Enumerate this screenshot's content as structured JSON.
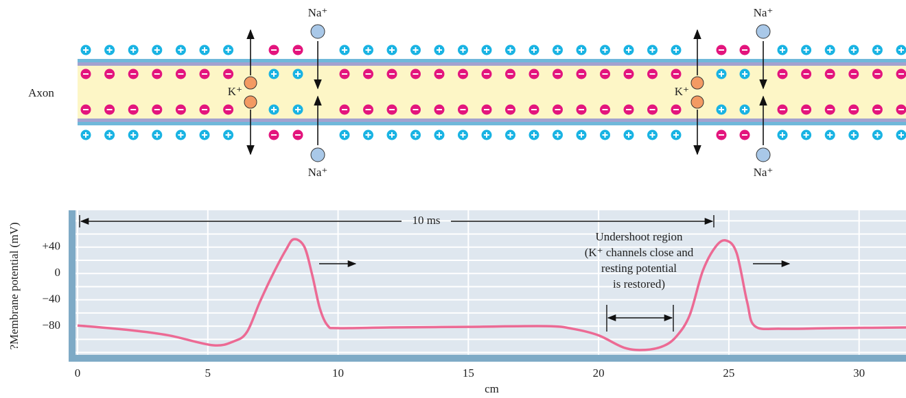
{
  "diagram": {
    "axon_label": "Axon",
    "na_labels": [
      "Na⁺",
      "Na⁺",
      "Na⁺",
      "Na⁺"
    ],
    "k_labels": [
      "K⁺",
      "K⁺"
    ]
  },
  "chart_data": {
    "type": "line",
    "xlabel": "cm",
    "ylabel": "?Membrane potential (mV)",
    "x": [
      0,
      2,
      3.5,
      5.2,
      6,
      6.5,
      7,
      7.5,
      8,
      8.3,
      8.7,
      9,
      9.3,
      9.6,
      10,
      12,
      15,
      18,
      19,
      20,
      21,
      21.8,
      22.5,
      23,
      23.5,
      24,
      24.5,
      24.9,
      25.3,
      25.7,
      26,
      27,
      29,
      31.8
    ],
    "values": [
      -79,
      -86,
      -94,
      -109,
      -103,
      -89,
      -43,
      -1,
      36,
      52,
      41,
      -1,
      -53,
      -79,
      -83,
      -82,
      -81,
      -80,
      -84,
      -94,
      -113,
      -116,
      -110,
      -95,
      -63,
      4,
      41,
      50,
      31,
      -43,
      -80,
      -84,
      -83,
      -82
    ],
    "color": "#ec6a94",
    "xlim": [
      0,
      31.8
    ],
    "ylim": [
      -134,
      96
    ],
    "xticks": [
      0,
      5,
      10,
      15,
      20,
      25,
      30
    ],
    "yticks": [
      {
        "value": 40,
        "label": "+40"
      },
      0,
      {
        "value": -40,
        "label": "−40"
      },
      {
        "value": -80,
        "label": "−80"
      }
    ],
    "ygrid": [
      80,
      60,
      20,
      -20,
      -60,
      -100,
      -120
    ],
    "grid": true,
    "annotations": {
      "duration": "10 ms",
      "undershoot": [
        "Undershoot region",
        "(K⁺ channels close and",
        "resting potential",
        "is restored)"
      ]
    }
  }
}
